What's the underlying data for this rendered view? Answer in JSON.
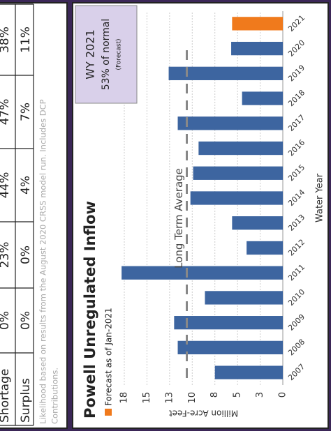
{
  "table": {
    "rows": [
      [
        "Shortage",
        "0%",
        "23%",
        "44%",
        "47%",
        "38%"
      ],
      [
        "Surplus",
        "0%",
        "0%",
        "4%",
        "7%",
        "11%"
      ]
    ],
    "footnote": [
      "Likelihood based on results from the August 2020 CRSS model run. Includes DCP",
      "Contributions."
    ]
  },
  "chart_data": {
    "type": "bar",
    "title": "Powell Unregulated Inflow",
    "x_label": "Water Year",
    "y_label": "Million Acre-Feet",
    "categories": [
      "2007",
      "2008",
      "2009",
      "2010",
      "2011",
      "2012",
      "2013",
      "2014",
      "2015",
      "2016",
      "2017",
      "2018",
      "2019",
      "2020",
      "2021"
    ],
    "values": [
      7.5,
      11.6,
      12.0,
      8.6,
      17.8,
      4.0,
      5.6,
      10.2,
      9.9,
      9.3,
      11.6,
      4.5,
      12.6,
      5.7,
      5.6
    ],
    "colors": [
      "#3d65a0",
      "#3d65a0",
      "#3d65a0",
      "#3d65a0",
      "#3d65a0",
      "#3d65a0",
      "#3d65a0",
      "#3d65a0",
      "#3d65a0",
      "#3d65a0",
      "#3d65a0",
      "#3d65a0",
      "#3d65a0",
      "#3d65a0",
      "#f07a1c"
    ],
    "legend": {
      "name": "Forecast as of Jan-2021",
      "color": "#f07a1c"
    },
    "ylim": [
      0,
      18.3
    ],
    "yticks": [
      0,
      {
        "value": 2.5,
        "label": "3"
      },
      5,
      {
        "value": 7.5,
        "label": "8"
      },
      10,
      {
        "value": 12.5,
        "label": "13"
      },
      15,
      {
        "value": 17.5,
        "label": "18"
      }
    ],
    "grid": true,
    "average": {
      "label": "Long Term Average",
      "value": 10.6
    },
    "forecast_box": [
      "WY 2021",
      "53%  of normal",
      "(Forecast)"
    ]
  }
}
